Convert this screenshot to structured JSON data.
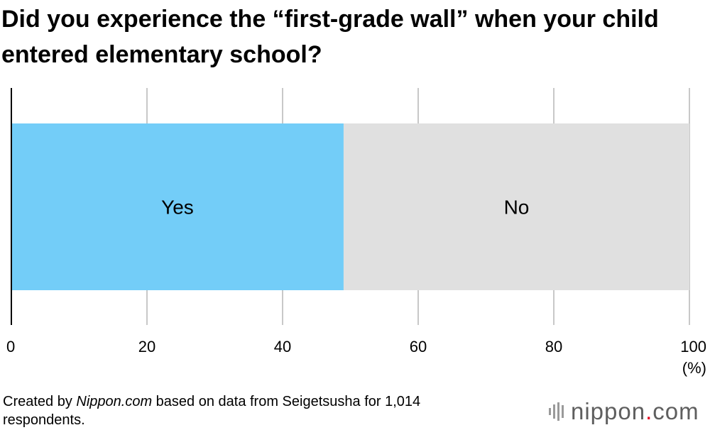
{
  "colors": {
    "yes": "#73cdf8",
    "no": "#e0e0e0",
    "grid": "#c8c8c8",
    "axis": "#000000",
    "brand_red": "#e6001f",
    "brand_gray": "#5e5e5e"
  },
  "chart_data": {
    "type": "bar",
    "orientation": "horizontal",
    "stacked": true,
    "title": "Did you experience the “first-grade wall” when your child entered elementary school?",
    "categories": [
      ""
    ],
    "series": [
      {
        "name": "Yes",
        "values": [
          49
        ]
      },
      {
        "name": "No",
        "values": [
          51
        ]
      }
    ],
    "xlabel": "",
    "ylabel": "",
    "xlim": [
      0,
      100
    ],
    "xticks": [
      "0",
      "20",
      "40",
      "60",
      "80",
      "100"
    ],
    "unit_label": "(%)",
    "grid": true,
    "legend": "none (labels inside bars)"
  },
  "footer": {
    "prefix": "Created by ",
    "source_name": "Nippon.com",
    "suffix": " based on data from Seigetsusha for 1,014 respondents."
  },
  "logo": {
    "main": "nippon",
    "dot": ".",
    "tld": "com",
    "icon": "nippon-logo-icon"
  }
}
